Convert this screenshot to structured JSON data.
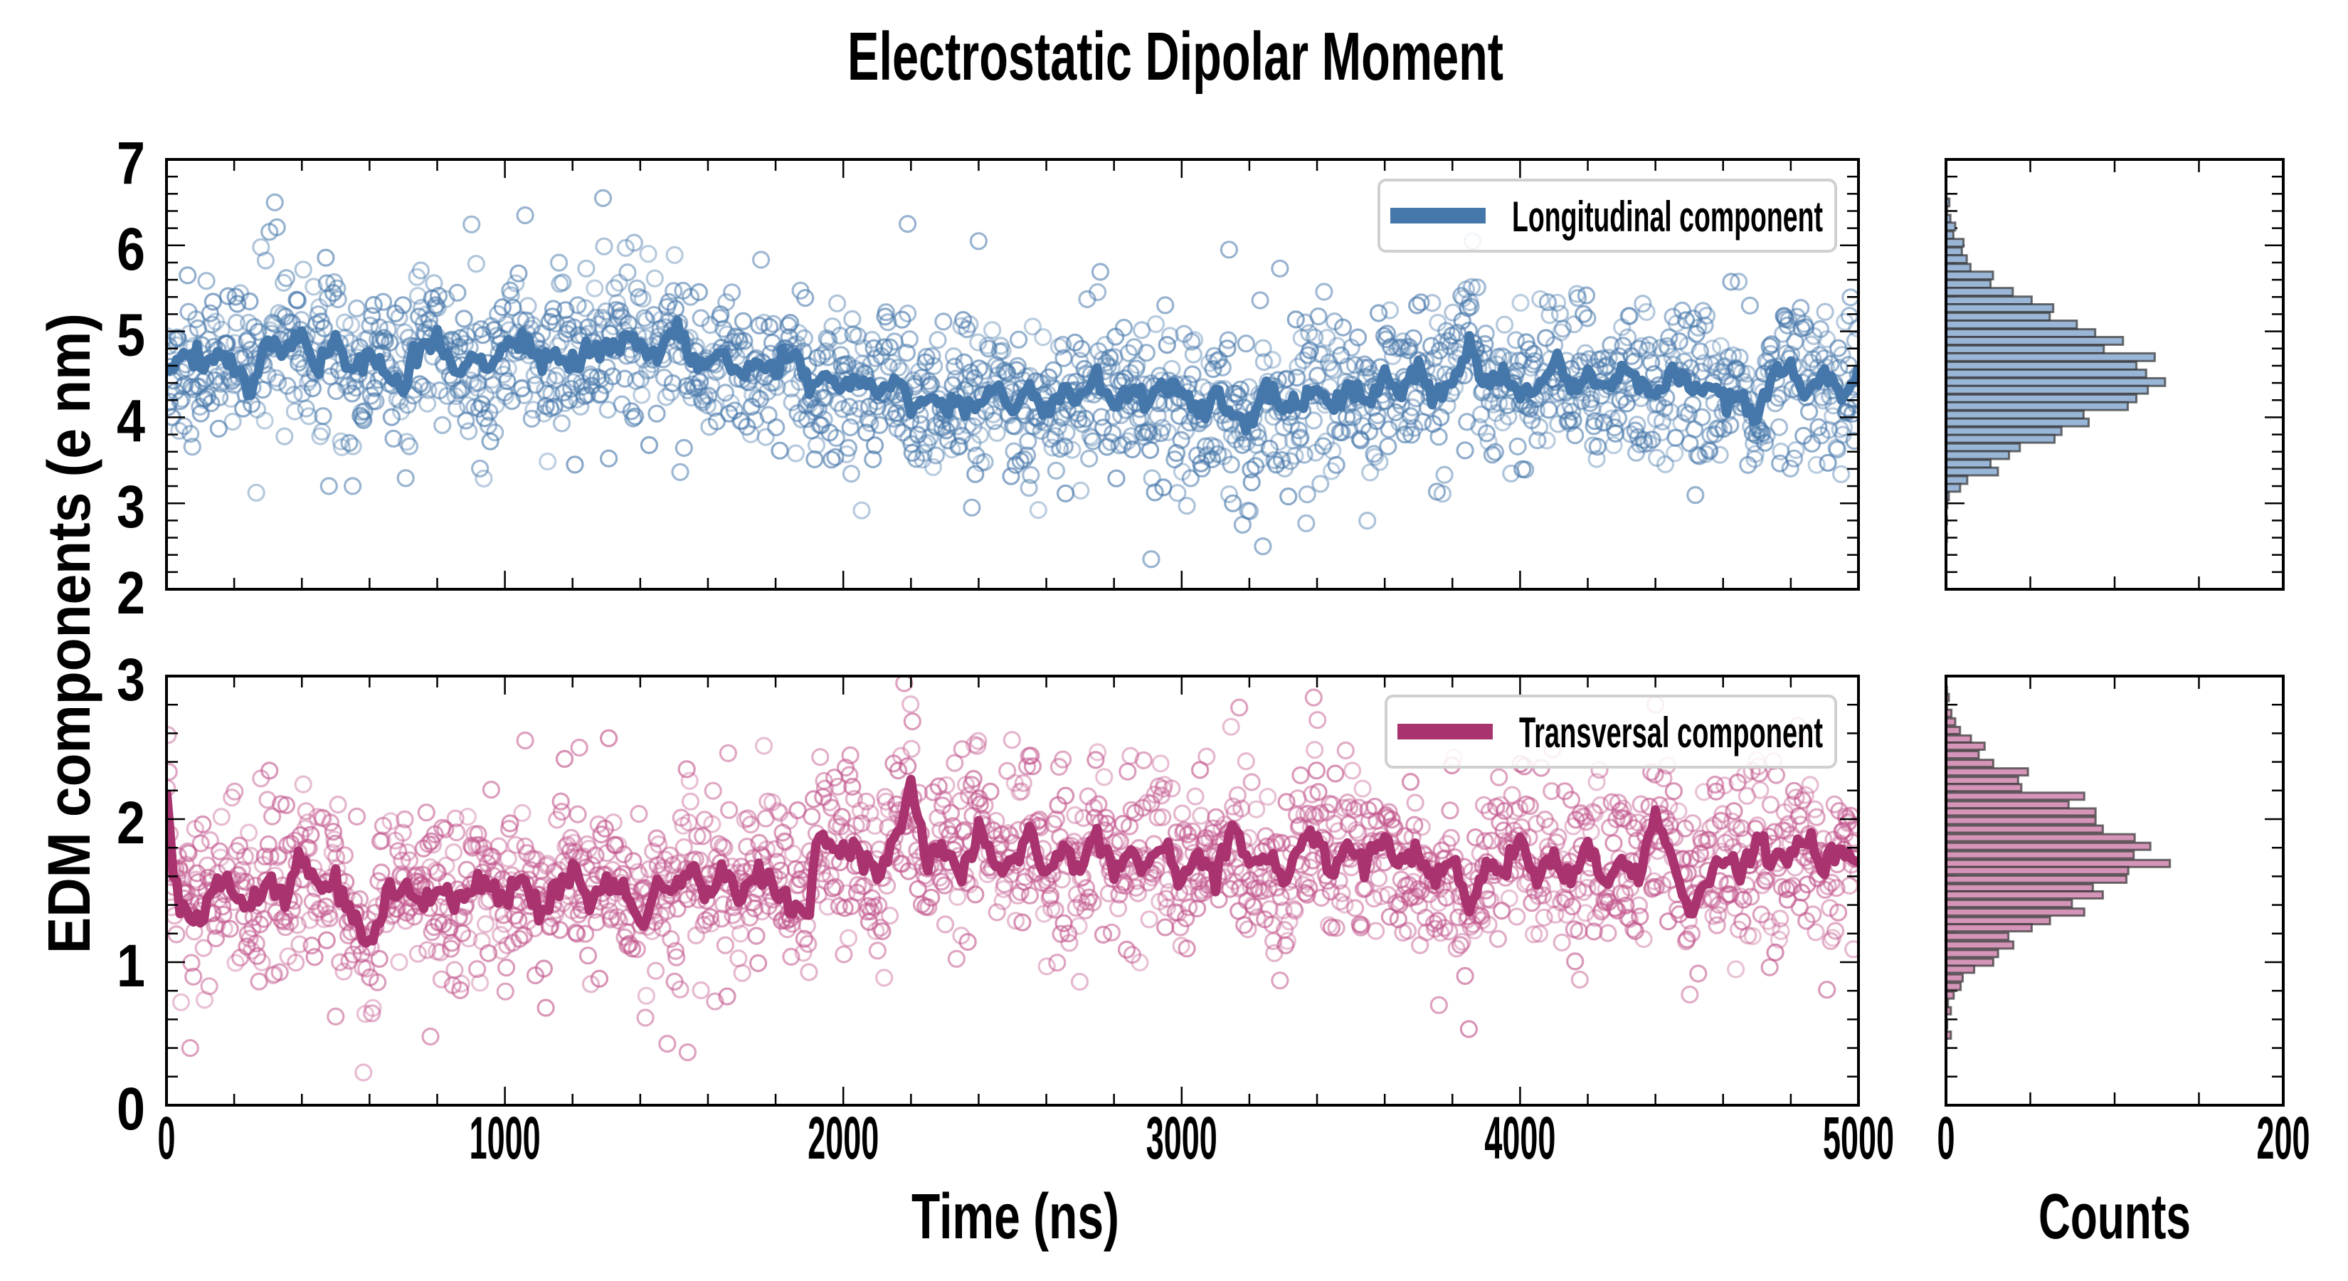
{
  "chart_data": {
    "type": "line",
    "title": "Electrostatic Dipolar Moment",
    "ylabel": "EDM components (e nm)",
    "xlabel": "Time (ns)",
    "hist_xlabel": "Counts",
    "xlim": [
      0,
      5000
    ],
    "x_ticks": [
      "0",
      "1000",
      "2000",
      "3000",
      "4000",
      "5000"
    ],
    "x_tick_values": [
      0,
      1000,
      2000,
      3000,
      4000,
      5000
    ],
    "x_minor_step": 200,
    "hist_xlim": [
      0,
      200
    ],
    "hist_ticks": [
      "0",
      "200"
    ],
    "hist_tick_values": [
      0,
      200
    ],
    "hist_minor_step": 50,
    "grid": false,
    "panels": [
      {
        "name": "Longitudinal component",
        "legend": "Longitudinal component",
        "legend_placement": "top-right",
        "color": "#4677aa",
        "marker_color": "#4677aa",
        "hist_fill": "#9ab6d6",
        "ylim": [
          2,
          7
        ],
        "y_ticks": [
          "2",
          "3",
          "4",
          "5",
          "6",
          "7"
        ],
        "y_tick_values": [
          2,
          3,
          4,
          5,
          6,
          7
        ],
        "y_minor_step": 0.2,
        "line_x": [
          0,
          50,
          100,
          150,
          200,
          250,
          300,
          350,
          400,
          450,
          500,
          550,
          600,
          650,
          700,
          750,
          800,
          850,
          900,
          950,
          1000,
          1050,
          1100,
          1150,
          1200,
          1250,
          1300,
          1350,
          1400,
          1450,
          1500,
          1550,
          1600,
          1650,
          1700,
          1750,
          1800,
          1850,
          1900,
          1950,
          2000,
          2050,
          2100,
          2150,
          2200,
          2250,
          2300,
          2350,
          2400,
          2450,
          2500,
          2550,
          2600,
          2650,
          2700,
          2750,
          2800,
          2850,
          2900,
          2950,
          3000,
          3050,
          3100,
          3150,
          3200,
          3250,
          3300,
          3350,
          3400,
          3450,
          3500,
          3550,
          3600,
          3650,
          3700,
          3750,
          3800,
          3850,
          3900,
          3950,
          4000,
          4050,
          4100,
          4150,
          4200,
          4250,
          4300,
          4350,
          4400,
          4450,
          4500,
          4550,
          4600,
          4650,
          4700,
          4750,
          4800,
          4850,
          4900,
          4950,
          5000
        ],
        "line_y": [
          4.5,
          4.7,
          4.6,
          4.75,
          4.6,
          4.35,
          4.9,
          4.8,
          4.9,
          4.6,
          4.95,
          4.5,
          4.7,
          4.5,
          4.3,
          4.85,
          4.95,
          4.55,
          4.7,
          4.5,
          4.8,
          4.95,
          4.6,
          4.75,
          4.55,
          4.8,
          4.75,
          4.95,
          4.8,
          4.7,
          5.05,
          4.65,
          4.55,
          4.7,
          4.5,
          4.6,
          4.55,
          4.7,
          4.4,
          4.5,
          4.35,
          4.45,
          4.3,
          4.5,
          4.15,
          4.2,
          4.1,
          4.2,
          4.15,
          4.4,
          4.05,
          4.3,
          4.1,
          4.35,
          4.2,
          4.5,
          4.1,
          4.3,
          4.2,
          4.4,
          4.25,
          4.1,
          4.3,
          4.05,
          3.9,
          4.3,
          4.1,
          4.2,
          4.3,
          4.15,
          4.35,
          4.2,
          4.4,
          4.3,
          4.6,
          4.2,
          4.45,
          4.8,
          4.35,
          4.5,
          4.25,
          4.4,
          4.6,
          4.35,
          4.5,
          4.3,
          4.55,
          4.4,
          4.25,
          4.5,
          4.3,
          4.4,
          4.2,
          4.3,
          4.0,
          4.5,
          4.6,
          4.3,
          4.55,
          4.2,
          4.6
        ],
        "scatter_count": 1800,
        "scatter_sd": 0.55,
        "scatter_outliers": [
          [
            320,
            6.5
          ],
          [
            1290,
            6.55
          ],
          [
            1060,
            6.35
          ],
          [
            2190,
            6.25
          ],
          [
            2400,
            6.05
          ],
          [
            3140,
            5.95
          ],
          [
            2910,
            2.35
          ],
          [
            3240,
            2.5
          ],
          [
            3180,
            2.75
          ],
          [
            2380,
            2.95
          ],
          [
            480,
            3.2
          ],
          [
            550,
            3.2
          ]
        ],
        "hist_bins": [
          6.5,
          6.41,
          6.31,
          6.22,
          6.12,
          6.03,
          5.93,
          5.84,
          5.74,
          5.65,
          5.55,
          5.46,
          5.36,
          5.27,
          5.17,
          5.08,
          4.98,
          4.89,
          4.79,
          4.7,
          4.6,
          4.51,
          4.41,
          4.32,
          4.22,
          4.13,
          4.03,
          3.94,
          3.84,
          3.75,
          3.65,
          3.56,
          3.46,
          3.37,
          3.27,
          3.18,
          3.08,
          2.99,
          2.8,
          2.6
        ],
        "hist_counts": [
          2,
          0.5,
          2.6,
          5.5,
          4.4,
          10.4,
          9.4,
          12.3,
          14.5,
          27.9,
          26.4,
          39.6,
          50.8,
          63.6,
          61.5,
          77.6,
          88.5,
          105,
          93.6,
          123.8,
          112.9,
          118.7,
          129.9,
          119.7,
          112.9,
          107.8,
          81.6,
          84.6,
          68.5,
          64.4,
          43.8,
          37.4,
          26.4,
          30.8,
          12.6,
          8.4,
          1.7,
          0.7,
          0.5,
          0.5
        ]
      },
      {
        "name": "Transversal component",
        "legend": "Transversal component",
        "legend_placement": "top-right",
        "color": "#a8336f",
        "marker_color": "#c2558c",
        "hist_fill": "#d595b8",
        "ylim": [
          0,
          3
        ],
        "y_ticks": [
          "0",
          "1",
          "2",
          "3"
        ],
        "y_tick_values": [
          0,
          1,
          2,
          3
        ],
        "y_minor_step": 0.2,
        "line_x": [
          0,
          20,
          50,
          100,
          150,
          200,
          250,
          300,
          350,
          400,
          450,
          500,
          550,
          600,
          650,
          700,
          750,
          800,
          850,
          900,
          950,
          1000,
          1050,
          1100,
          1150,
          1200,
          1250,
          1300,
          1350,
          1400,
          1450,
          1500,
          1550,
          1600,
          1650,
          1700,
          1750,
          1800,
          1850,
          1900,
          1920,
          1950,
          2000,
          2050,
          2100,
          2150,
          2200,
          2250,
          2300,
          2350,
          2400,
          2450,
          2500,
          2550,
          2600,
          2650,
          2700,
          2750,
          2800,
          2850,
          2900,
          2950,
          3000,
          3050,
          3100,
          3150,
          3200,
          3250,
          3300,
          3350,
          3400,
          3450,
          3500,
          3550,
          3600,
          3650,
          3700,
          3750,
          3800,
          3850,
          3900,
          3950,
          4000,
          4050,
          4100,
          4150,
          4200,
          4250,
          4300,
          4350,
          4400,
          4450,
          4500,
          4550,
          4600,
          4650,
          4700,
          4750,
          4800,
          4850,
          4900,
          4950,
          5000
        ],
        "line_y": [
          2.2,
          1.6,
          1.35,
          1.3,
          1.6,
          1.45,
          1.4,
          1.55,
          1.45,
          1.75,
          1.5,
          1.55,
          1.35,
          1.1,
          1.45,
          1.55,
          1.4,
          1.5,
          1.45,
          1.5,
          1.55,
          1.45,
          1.6,
          1.35,
          1.5,
          1.65,
          1.45,
          1.55,
          1.5,
          1.25,
          1.55,
          1.5,
          1.65,
          1.45,
          1.6,
          1.45,
          1.65,
          1.5,
          1.4,
          1.3,
          1.85,
          1.85,
          1.75,
          1.8,
          1.6,
          1.85,
          2.25,
          1.7,
          1.8,
          1.65,
          1.95,
          1.65,
          1.7,
          1.9,
          1.6,
          1.8,
          1.65,
          1.9,
          1.6,
          1.8,
          1.7,
          1.85,
          1.55,
          1.75,
          1.65,
          1.9,
          1.7,
          1.75,
          1.55,
          1.8,
          1.9,
          1.65,
          1.8,
          1.7,
          1.85,
          1.65,
          1.8,
          1.55,
          1.7,
          1.35,
          1.7,
          1.6,
          1.9,
          1.55,
          1.75,
          1.6,
          1.85,
          1.55,
          1.7,
          1.6,
          2.05,
          1.7,
          1.35,
          1.6,
          1.75,
          1.6,
          1.85,
          1.7,
          1.75,
          1.85,
          1.65,
          1.8,
          1.7
        ],
        "scatter_count": 1800,
        "scatter_sd": 0.36,
        "scatter_outliers": [
          [
            70,
            0.4
          ],
          [
            500,
            0.62
          ],
          [
            780,
            0.48
          ],
          [
            1480,
            0.43
          ],
          [
            1540,
            0.37
          ],
          [
            2180,
            2.95
          ],
          [
            3390,
            2.85
          ],
          [
            3170,
            2.78
          ],
          [
            4400,
            2.8
          ],
          [
            3760,
            0.7
          ],
          [
            1220,
            2.5
          ],
          [
            1060,
            2.55
          ]
        ],
        "hist_bins": [
          2.9,
          2.85,
          2.79,
          2.74,
          2.68,
          2.62,
          2.56,
          2.51,
          2.45,
          2.39,
          2.33,
          2.27,
          2.22,
          2.16,
          2.1,
          2.05,
          1.99,
          1.93,
          1.87,
          1.81,
          1.75,
          1.69,
          1.64,
          1.58,
          1.52,
          1.47,
          1.41,
          1.35,
          1.29,
          1.24,
          1.18,
          1.12,
          1.06,
          1.0,
          0.95,
          0.89,
          0.83,
          0.77,
          0.71,
          0.66,
          0.56,
          0.49
        ],
        "hist_counts": [
          0.5,
          1.7,
          0.5,
          3.2,
          5.5,
          8.3,
          14.8,
          22.9,
          19.4,
          28,
          48.6,
          42.8,
          44.7,
          82,
          72.7,
          88.7,
          88.7,
          93,
          111.9,
          121.2,
          111.3,
          132.8,
          108.1,
          107,
          87.1,
          93,
          74.7,
          82,
          61.7,
          50.8,
          37,
          39.9,
          30.9,
          28,
          16.7,
          9.9,
          8.7,
          4.6,
          1.2,
          2.9,
          0.7,
          2.9
        ]
      }
    ]
  }
}
